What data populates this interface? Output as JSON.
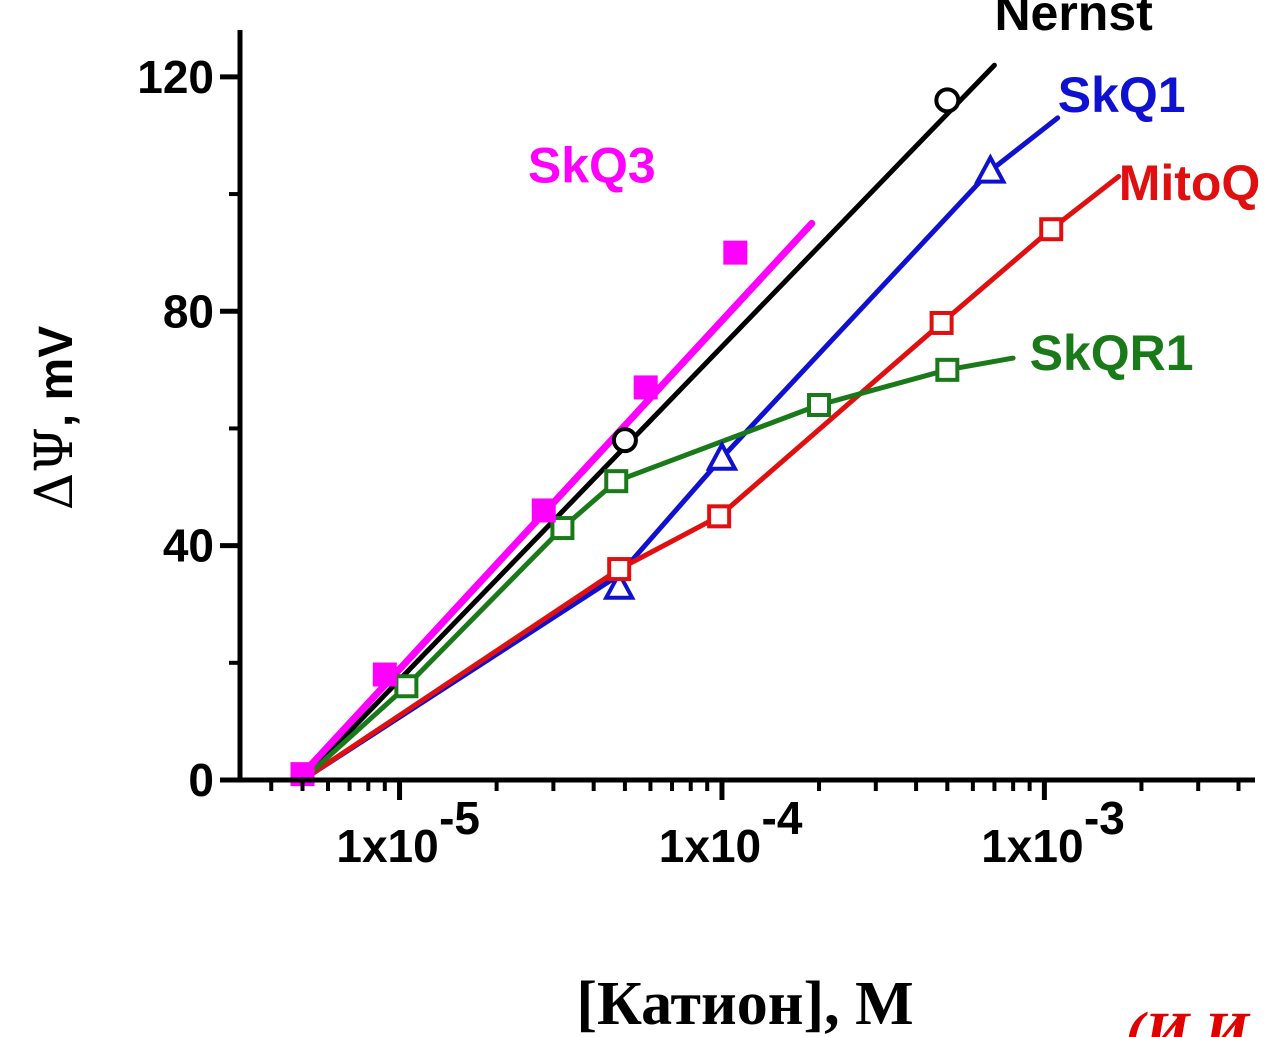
{
  "chart_data": {
    "type": "line",
    "xlabel": "[Катион], М",
    "ylabel_delta": "ΔΨ",
    "ylabel_unit": ", mV",
    "x_scale": "log",
    "xlim": [
      3.2e-06,
      0.0045
    ],
    "ylim": [
      0,
      128
    ],
    "x_ticks": [
      {
        "value": 1e-05,
        "base": "1x10",
        "exp": "-5"
      },
      {
        "value": 0.0001,
        "base": "1x10",
        "exp": "-4"
      },
      {
        "value": 0.001,
        "base": "1x10",
        "exp": "-3"
      }
    ],
    "y_ticks": [
      0,
      40,
      80,
      120
    ],
    "grid": false,
    "series": [
      {
        "name": "Nernst",
        "color": "#000000",
        "marker": "circle-open",
        "line": [
          [
            5e-06,
            0
          ],
          [
            0.0007,
            122
          ]
        ],
        "points": [
          [
            5e-05,
            58
          ],
          [
            0.0005,
            116
          ]
        ],
        "label_pos": [
          0.0007,
          128
        ]
      },
      {
        "name": "SkQ1",
        "color": "#1010d0",
        "marker": "triangle-open",
        "line": [
          [
            5e-06,
            0
          ],
          [
            4.8e-05,
            35
          ],
          [
            0.0001,
            55
          ],
          [
            0.00068,
            104
          ],
          [
            0.0011,
            113
          ]
        ],
        "points": [
          [
            4.8e-05,
            33
          ],
          [
            0.0001,
            55
          ],
          [
            0.00068,
            104
          ]
        ],
        "label_pos": [
          0.0011,
          114
        ]
      },
      {
        "name": "MitoQ",
        "color": "#e01010",
        "marker": "square-open",
        "line": [
          [
            5e-06,
            0
          ],
          [
            4.8e-05,
            36
          ],
          [
            9.8e-05,
            45
          ],
          [
            0.00048,
            78
          ],
          [
            0.00105,
            94
          ],
          [
            0.0017,
            103
          ]
        ],
        "points": [
          [
            4.8e-05,
            36
          ],
          [
            9.8e-05,
            45
          ],
          [
            0.00048,
            78
          ],
          [
            0.00105,
            94
          ]
        ],
        "label_pos": [
          0.0017,
          99
        ]
      },
      {
        "name": "SkQR1",
        "color": "#1a7a1a",
        "marker": "square-open",
        "line": [
          [
            5e-06,
            0
          ],
          [
            1.05e-05,
            16
          ],
          [
            3.2e-05,
            43
          ],
          [
            4.7e-05,
            51
          ],
          [
            0.0002,
            64
          ],
          [
            0.0005,
            70
          ],
          [
            0.0008,
            72
          ]
        ],
        "points": [
          [
            1.05e-05,
            16
          ],
          [
            3.2e-05,
            43
          ],
          [
            4.7e-05,
            51
          ],
          [
            0.0002,
            64
          ],
          [
            0.0005,
            70
          ]
        ],
        "label_pos": [
          0.0009,
          70
        ]
      },
      {
        "name": "SkQ3",
        "color": "#ff00ff",
        "marker": "square-filled",
        "line": [
          [
            5e-06,
            1
          ],
          [
            0.00019,
            95
          ]
        ],
        "points": [
          [
            5e-06,
            1
          ],
          [
            9e-06,
            18
          ],
          [
            2.8e-05,
            46
          ],
          [
            5.8e-05,
            67
          ],
          [
            0.00011,
            90
          ]
        ],
        "label_pos": [
          2.5e-05,
          102
        ]
      }
    ]
  },
  "corner_text": "(И.И",
  "corner_color": "#e00000"
}
